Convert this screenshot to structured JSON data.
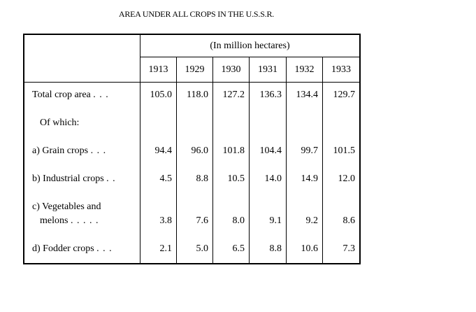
{
  "title": "AREA UNDER ALL CROPS IN THE U.S.S.R.",
  "unit": "(In million hectares)",
  "years": [
    "1913",
    "1929",
    "1930",
    "1931",
    "1932",
    "1933"
  ],
  "rows": [
    {
      "label": "Total crop area",
      "dots": ". . .",
      "values": [
        "105.0",
        "118.0",
        "127.2",
        "136.3",
        "134.4",
        "129.7"
      ]
    },
    {
      "label": "Of which:",
      "dots": "",
      "values": [
        "",
        "",
        "",
        "",
        "",
        ""
      ]
    },
    {
      "label": "a) Grain crops",
      "dots": ". . .",
      "values": [
        "94.4",
        "96.0",
        "101.8",
        "104.4",
        "99.7",
        "101.5"
      ]
    },
    {
      "label": "b) Industrial crops",
      "dots": ". .",
      "values": [
        "4.5",
        "8.8",
        "10.5",
        "14.0",
        "14.9",
        "12.0"
      ]
    },
    {
      "label": "c) Vegetables and",
      "dots": "",
      "values": [
        "",
        "",
        "",
        "",
        "",
        ""
      ]
    },
    {
      "label": "melons",
      "dots": ". . . . .",
      "values": [
        "3.8",
        "7.6",
        "8.0",
        "9.1",
        "9.2",
        "8.6"
      ]
    },
    {
      "label": "d) Fodder crops",
      "dots": ". . .",
      "values": [
        "2.1",
        "5.0",
        "6.5",
        "8.8",
        "10.6",
        "7.3"
      ]
    }
  ]
}
